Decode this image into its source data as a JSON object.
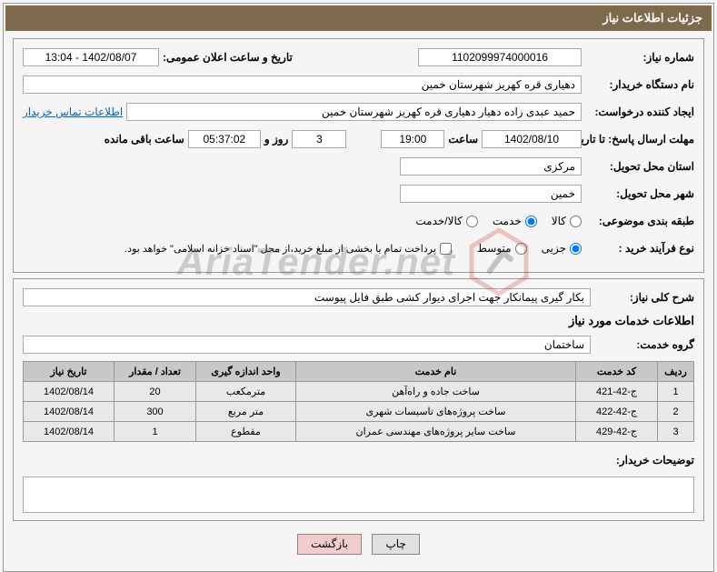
{
  "title_bar": "جزئیات اطلاعات نیاز",
  "row1": {
    "need_no_label": "شماره نیاز:",
    "need_no": "1102099974000016",
    "announce_label": "تاریخ و ساعت اعلان عمومی:",
    "announce_value": "1402/08/07 - 13:04"
  },
  "row2": {
    "buyer_label": "نام دستگاه خریدار:",
    "buyer_value": "دهیاری قره کهریز شهرستان خمین"
  },
  "row3": {
    "requester_label": "ایجاد کننده درخواست:",
    "requester_value": "حمید عبدی زاده دهیار دهیاری قره کهریز شهرستان خمین",
    "contact_link": "اطلاعات تماس خریدار"
  },
  "row4": {
    "deadline_label": "مهلت ارسال پاسخ: تا تاریخ:",
    "deadline_date": "1402/08/10",
    "time_label": "ساعت",
    "deadline_time": "19:00",
    "days_value": "3",
    "days_label": "روز و",
    "remain_time": "05:37:02",
    "remain_label": "ساعت باقی مانده"
  },
  "row5": {
    "province_label": "استان محل تحویل:",
    "province_value": "مرکزی"
  },
  "row6": {
    "city_label": "شهر محل تحویل:",
    "city_value": "خمین"
  },
  "row7": {
    "category_label": "طبقه بندی موضوعی:",
    "opt_goods": "کالا",
    "opt_service": "خدمت",
    "opt_both": "کالا/خدمت"
  },
  "row8": {
    "process_label": "نوع فرآیند خرید :",
    "opt_partial": "جزیی",
    "opt_medium": "متوسط",
    "checkbox_text": "پرداخت تمام یا بخشی از مبلغ خرید،از محل \"اسناد خزانه اسلامی\" خواهد بود."
  },
  "section2": {
    "desc_label": "شرح کلی نیاز:",
    "desc_value": "بکار گیری پیمانکار جهت اجرای دیوار کشی طبق فایل پیوست",
    "services_header": "اطلاعات خدمات مورد نیاز",
    "group_label": "گروه خدمت:",
    "group_value": "ساختمان"
  },
  "table": {
    "headers": [
      "ردیف",
      "کد خدمت",
      "نام خدمت",
      "واحد اندازه گیری",
      "تعداد / مقدار",
      "تاریخ نیاز"
    ],
    "rows": [
      [
        "1",
        "ج-42-421",
        "ساخت جاده و راه‌آهن",
        "مترمکعب",
        "20",
        "1402/08/14"
      ],
      [
        "2",
        "ج-42-422",
        "ساخت پروژه‌های تاسیسات شهری",
        "متر مربع",
        "300",
        "1402/08/14"
      ],
      [
        "3",
        "ج-42-429",
        "ساخت سایر پروژه‌های مهندسی عمران",
        "مقطوع",
        "1",
        "1402/08/14"
      ]
    ]
  },
  "buyer_notes_label": "توضیحات خریدار:",
  "buttons": {
    "print": "چاپ",
    "back": "بازگشت"
  },
  "watermark": "AriaTender.net",
  "colors": {
    "title_bg": "#7d6a4d",
    "th_bg": "#c8c8c8",
    "td_bg": "#e8e8e8"
  }
}
